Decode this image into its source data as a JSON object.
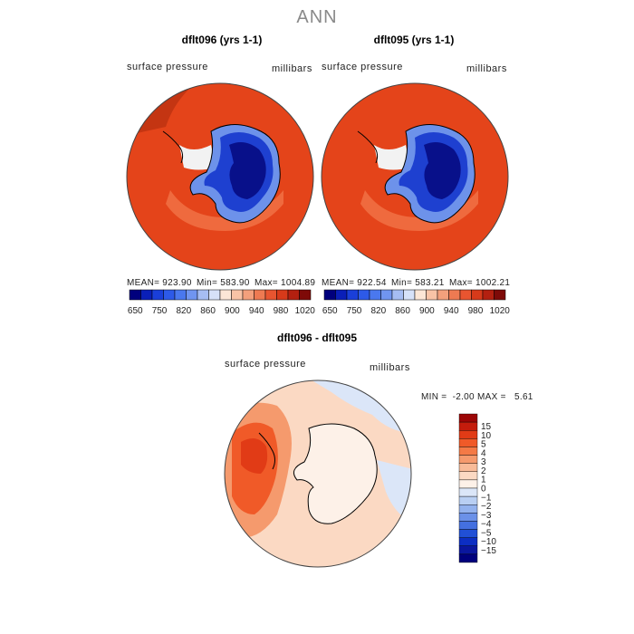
{
  "title": "ANN",
  "panels": [
    {
      "title": "dflt096 (yrs 1-1)",
      "left_label": "surface pressure",
      "right_label": "millibars",
      "mean": "MEAN= 923.90",
      "min": "Min= 583.90",
      "max": "Max= 1004.89"
    },
    {
      "title": "dflt095 (yrs 1-1)",
      "left_label": "surface pressure",
      "right_label": "millibars",
      "mean": "MEAN= 922.54",
      "min": "Min= 583.21",
      "max": "Max= 1002.21"
    }
  ],
  "colorbar_top": {
    "colors": [
      "#00007d",
      "#0a1fb8",
      "#1a3fd9",
      "#2d5ae8",
      "#4a78ee",
      "#7095f0",
      "#a6bdf3",
      "#d6e1f8",
      "#fce6d6",
      "#f8c3a6",
      "#f3a07c",
      "#ee7a52",
      "#e85530",
      "#d73a1a",
      "#b32010",
      "#7e0a08"
    ],
    "labels": [
      "650",
      "750",
      "820",
      "860",
      "900",
      "940",
      "980",
      "1020"
    ]
  },
  "diff": {
    "title": "dflt096 - dflt095",
    "left_label": "surface pressure",
    "right_label": "millibars",
    "stats": "MIN =  -2.00 MAX =   5.61"
  },
  "colorbar_diff": {
    "colors": [
      "#9c0606",
      "#c41c0c",
      "#e13b16",
      "#f05a28",
      "#f47a46",
      "#f59a6d",
      "#f8bb98",
      "#fbd9c3",
      "#fdf1e8",
      "#dbe6f8",
      "#b9cff3",
      "#93b2ee",
      "#6b91e8",
      "#4470e0",
      "#2150d6",
      "#0c2ec3",
      "#0a169e",
      "#00007d"
    ],
    "labels": [
      "15",
      "10",
      "5",
      "4",
      "3",
      "2",
      "1",
      "0",
      "−1",
      "−2",
      "−3",
      "−4",
      "−5",
      "−10",
      "−15"
    ]
  },
  "colors": {
    "ocean_red": "#e4441a",
    "ice_deep": "#08108a",
    "ice_mid": "#1e40d0",
    "ice_light": "#6d92ea",
    "coast": "#000000"
  }
}
